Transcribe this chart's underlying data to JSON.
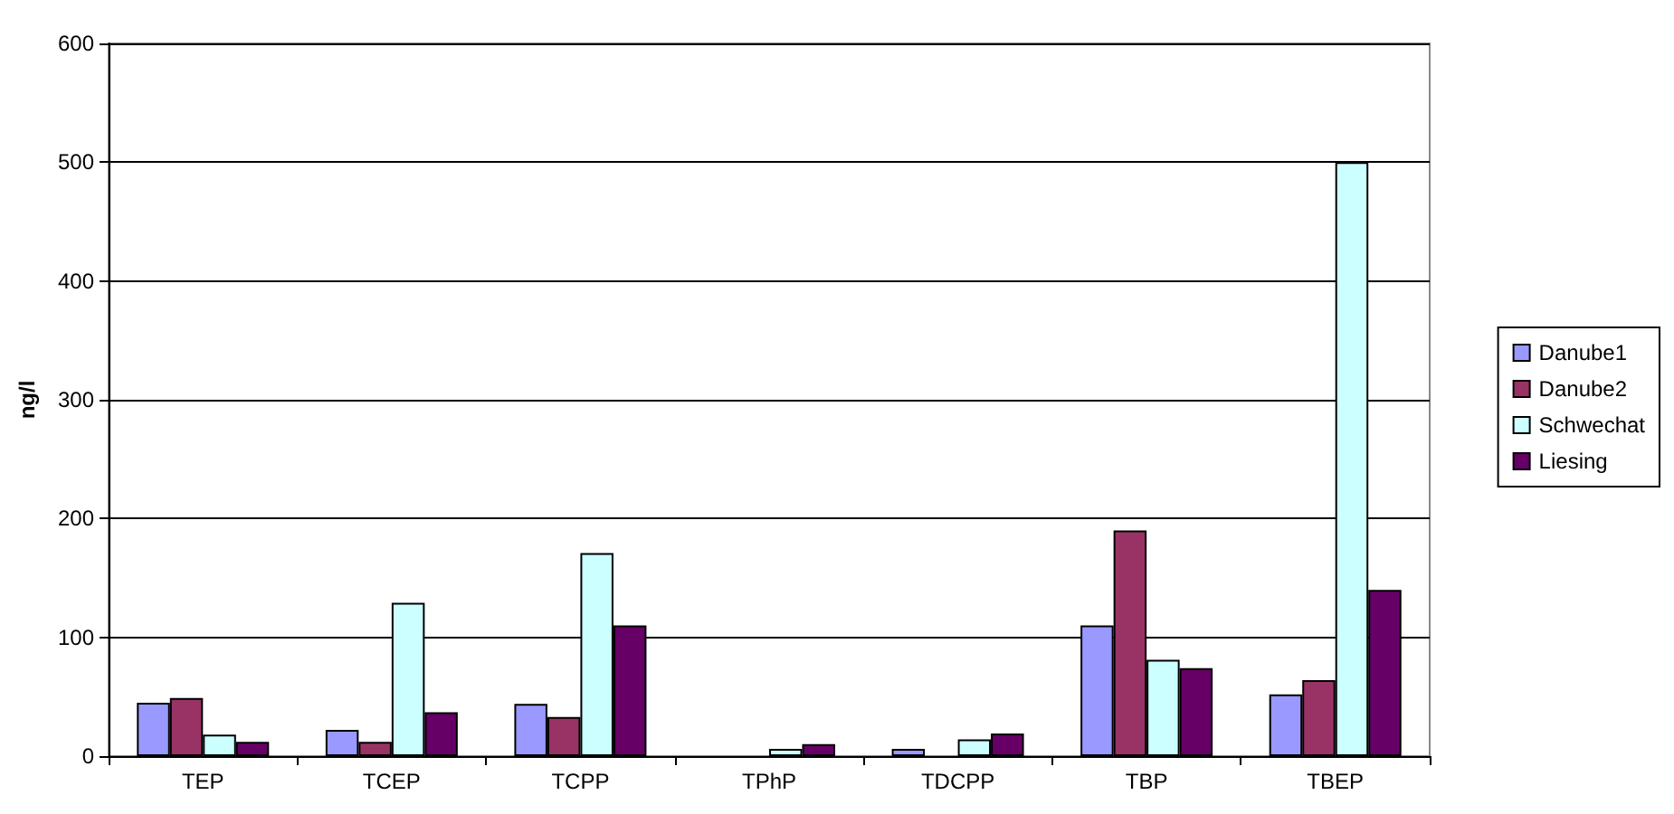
{
  "chart_data": {
    "type": "bar",
    "ylabel": "ng/l",
    "categories": [
      "TEP",
      "TCEP",
      "TCPP",
      "TPhP",
      "TDCPP",
      "TBP",
      "TBEP"
    ],
    "series": [
      {
        "name": "Danube1",
        "color": "#9999ff",
        "values": [
          45,
          22,
          44,
          null,
          6,
          110,
          52
        ]
      },
      {
        "name": "Danube2",
        "color": "#993366",
        "values": [
          49,
          12,
          33,
          null,
          null,
          190,
          64
        ]
      },
      {
        "name": "Schwechat",
        "color": "#ccffff",
        "values": [
          18,
          129,
          171,
          6,
          14,
          81,
          500
        ]
      },
      {
        "name": "Liesing",
        "color": "#660066",
        "values": [
          12,
          37,
          110,
          10,
          19,
          74,
          140
        ]
      }
    ],
    "ylim": [
      0,
      600
    ],
    "yticks": [
      0,
      100,
      200,
      300,
      400,
      500,
      600
    ],
    "grid": "y",
    "legend": "right"
  }
}
